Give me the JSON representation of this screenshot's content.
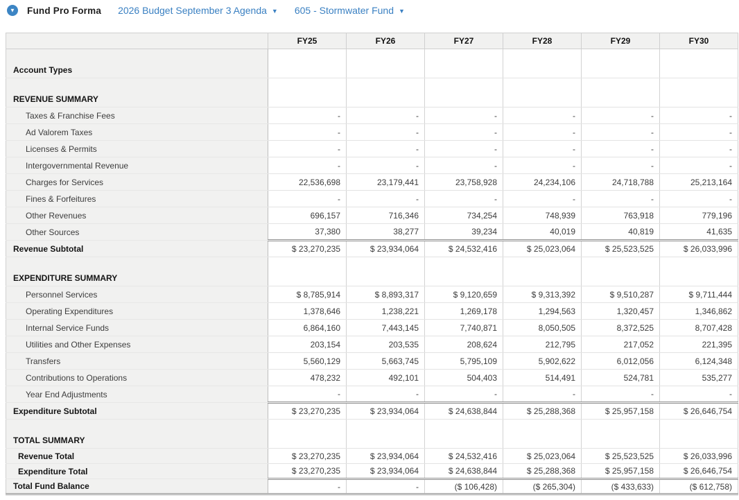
{
  "header": {
    "title": "Fund Pro Forma",
    "budget_selector": {
      "label": "2026 Budget September 3 Agenda"
    },
    "fund_selector": {
      "label": "605 - Stormwater Fund"
    },
    "caret_glyph": "▼",
    "accent_color": "#3c85c4",
    "link_color": "#3a80c2"
  },
  "table": {
    "columns": [
      "FY25",
      "FY26",
      "FY27",
      "FY28",
      "FY29",
      "FY30"
    ],
    "rows": [
      {
        "label": "Account Types",
        "type": "section",
        "values": [
          "",
          "",
          "",
          "",
          "",
          ""
        ]
      },
      {
        "label": "REVENUE SUMMARY",
        "type": "section",
        "values": [
          "",
          "",
          "",
          "",
          "",
          ""
        ]
      },
      {
        "label": "Taxes & Franchise Fees",
        "type": "detail",
        "values": [
          "-",
          "-",
          "-",
          "-",
          "-",
          "-"
        ]
      },
      {
        "label": "Ad Valorem Taxes",
        "type": "detail",
        "values": [
          "-",
          "-",
          "-",
          "-",
          "-",
          "-"
        ]
      },
      {
        "label": "Licenses & Permits",
        "type": "detail",
        "values": [
          "-",
          "-",
          "-",
          "-",
          "-",
          "-"
        ]
      },
      {
        "label": "Intergovernmental Revenue",
        "type": "detail",
        "values": [
          "-",
          "-",
          "-",
          "-",
          "-",
          "-"
        ]
      },
      {
        "label": "Charges for Services",
        "type": "detail",
        "values": [
          "22,536,698",
          "23,179,441",
          "23,758,928",
          "24,234,106",
          "24,718,788",
          "25,213,164"
        ]
      },
      {
        "label": "Fines & Forfeitures",
        "type": "detail",
        "values": [
          "-",
          "-",
          "-",
          "-",
          "-",
          "-"
        ]
      },
      {
        "label": "Other Revenues",
        "type": "detail",
        "values": [
          "696,157",
          "716,346",
          "734,254",
          "748,939",
          "763,918",
          "779,196"
        ]
      },
      {
        "label": "Other Sources",
        "type": "detail",
        "values": [
          "37,380",
          "38,277",
          "39,234",
          "40,019",
          "40,819",
          "41,635"
        ]
      },
      {
        "label": "Revenue Subtotal",
        "type": "subtotal",
        "values": [
          "$ 23,270,235",
          "$ 23,934,064",
          "$ 24,532,416",
          "$ 25,023,064",
          "$ 25,523,525",
          "$ 26,033,996"
        ]
      },
      {
        "label": "EXPENDITURE SUMMARY",
        "type": "section",
        "values": [
          "",
          "",
          "",
          "",
          "",
          ""
        ]
      },
      {
        "label": "Personnel Services",
        "type": "detail",
        "values": [
          "$ 8,785,914",
          "$ 8,893,317",
          "$ 9,120,659",
          "$ 9,313,392",
          "$ 9,510,287",
          "$ 9,711,444"
        ]
      },
      {
        "label": "Operating Expenditures",
        "type": "detail",
        "values": [
          "1,378,646",
          "1,238,221",
          "1,269,178",
          "1,294,563",
          "1,320,457",
          "1,346,862"
        ]
      },
      {
        "label": "Internal Service Funds",
        "type": "detail",
        "values": [
          "6,864,160",
          "7,443,145",
          "7,740,871",
          "8,050,505",
          "8,372,525",
          "8,707,428"
        ]
      },
      {
        "label": "Utilities and Other Expenses",
        "type": "detail",
        "values": [
          "203,154",
          "203,535",
          "208,624",
          "212,795",
          "217,052",
          "221,395"
        ]
      },
      {
        "label": "Transfers",
        "type": "detail",
        "values": [
          "5,560,129",
          "5,663,745",
          "5,795,109",
          "5,902,622",
          "6,012,056",
          "6,124,348"
        ]
      },
      {
        "label": "Contributions to Operations",
        "type": "detail",
        "values": [
          "478,232",
          "492,101",
          "504,403",
          "514,491",
          "524,781",
          "535,277"
        ]
      },
      {
        "label": "Year End Adjustments",
        "type": "detail",
        "values": [
          "-",
          "-",
          "-",
          "-",
          "-",
          "-"
        ]
      },
      {
        "label": "Expenditure Subtotal",
        "type": "subtotal",
        "values": [
          "$ 23,270,235",
          "$ 23,934,064",
          "$ 24,638,844",
          "$ 25,288,368",
          "$ 25,957,158",
          "$ 26,646,754"
        ]
      },
      {
        "label": "TOTAL SUMMARY",
        "type": "section",
        "values": [
          "",
          "",
          "",
          "",
          "",
          ""
        ]
      },
      {
        "label": "Revenue Total",
        "type": "total",
        "values": [
          "$ 23,270,235",
          "$ 23,934,064",
          "$ 24,532,416",
          "$ 25,023,064",
          "$ 25,523,525",
          "$ 26,033,996"
        ]
      },
      {
        "label": "Expenditure Total",
        "type": "total",
        "values": [
          "$ 23,270,235",
          "$ 23,934,064",
          "$ 24,638,844",
          "$ 25,288,368",
          "$ 25,957,158",
          "$ 26,646,754"
        ]
      },
      {
        "label": "Total Fund Balance",
        "type": "grandtotal",
        "values": [
          "-",
          "-",
          "($ 106,428)",
          "($ 265,304)",
          "($ 433,633)",
          "($ 612,758)"
        ]
      }
    ]
  }
}
